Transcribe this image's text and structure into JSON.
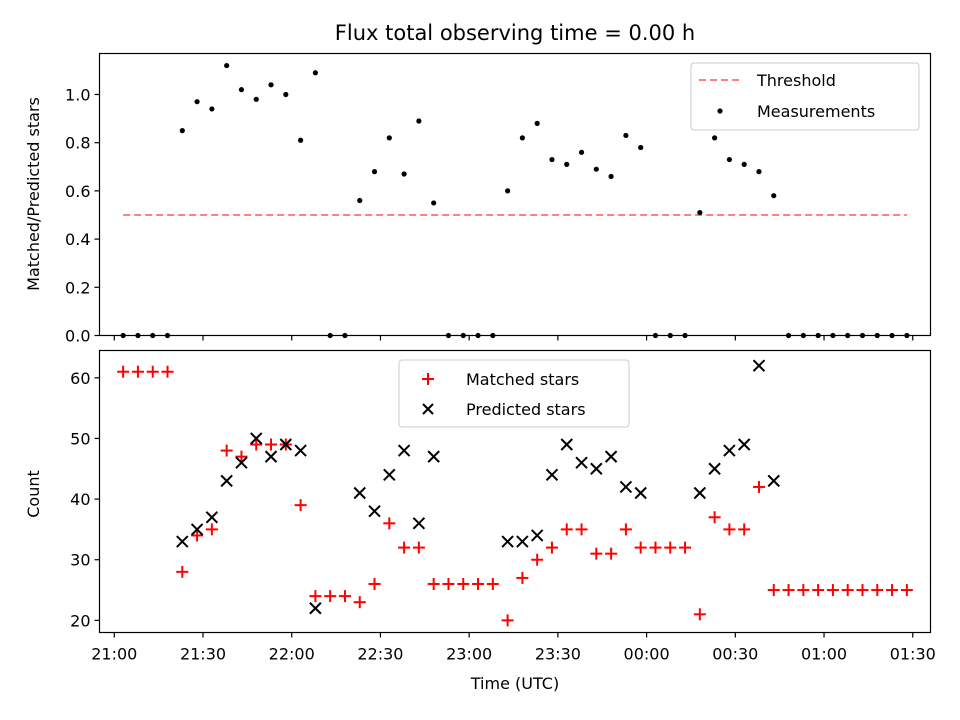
{
  "chart_data": [
    {
      "type": "scatter",
      "title": "Flux total observing time = 0.00 h",
      "xlabel": "",
      "ylabel": "Matched/Predicted stars",
      "xlim": [
        "20:55",
        "01:36"
      ],
      "ylim": [
        0,
        1.17
      ],
      "y_ticks": [
        0.0,
        0.2,
        0.4,
        0.6,
        0.8,
        1.0
      ],
      "y_tick_labels": [
        "0.0",
        "0.2",
        "0.4",
        "0.6",
        "0.8",
        "1.0"
      ],
      "legend_position": "upper right",
      "legend": [
        "Threshold",
        "Measurements"
      ],
      "threshold": {
        "name": "Threshold",
        "value": 0.5,
        "x_start": "21:03",
        "x_end": "01:28",
        "color": "#ff8080",
        "style": "dashed"
      },
      "series": [
        {
          "name": "Measurements",
          "color": "#000000",
          "marker": "dot",
          "x": [
            "21:03",
            "21:08",
            "21:13",
            "21:18",
            "21:23",
            "21:28",
            "21:33",
            "21:38",
            "21:43",
            "21:48",
            "21:53",
            "21:58",
            "22:03",
            "22:08",
            "22:13",
            "22:18",
            "22:23",
            "22:28",
            "22:33",
            "22:38",
            "22:43",
            "22:48",
            "22:53",
            "22:58",
            "23:03",
            "23:08",
            "23:13",
            "23:18",
            "23:23",
            "23:28",
            "23:33",
            "23:38",
            "23:43",
            "23:48",
            "23:53",
            "23:58",
            "00:03",
            "00:08",
            "00:13",
            "00:18",
            "00:23",
            "00:28",
            "00:33",
            "00:38",
            "00:43",
            "00:48",
            "00:53",
            "00:58",
            "01:03",
            "01:08",
            "01:13",
            "01:18",
            "01:23",
            "01:28"
          ],
          "y": [
            0,
            0,
            0,
            0,
            0.85,
            0.97,
            0.94,
            1.12,
            1.02,
            0.98,
            1.04,
            1.0,
            0.81,
            1.09,
            0,
            0,
            0.56,
            0.68,
            0.82,
            0.67,
            0.89,
            0.55,
            0,
            0,
            0,
            0,
            0.6,
            0.82,
            0.88,
            0.73,
            0.71,
            0.76,
            0.69,
            0.66,
            0.83,
            0.78,
            0,
            0,
            0,
            0.51,
            0.82,
            0.73,
            0.71,
            0.68,
            0.58,
            0,
            0,
            0,
            0,
            0,
            0,
            0,
            0,
            0
          ]
        }
      ]
    },
    {
      "type": "scatter",
      "title": "",
      "xlabel": "Time (UTC)",
      "ylabel": "Count",
      "xlim": [
        "20:55",
        "01:36"
      ],
      "ylim": [
        18,
        64.5
      ],
      "x_tick_labels": [
        "21:00",
        "21:30",
        "22:00",
        "22:30",
        "23:00",
        "23:30",
        "00:00",
        "00:30",
        "01:00",
        "01:30"
      ],
      "y_ticks": [
        20,
        30,
        40,
        50,
        60
      ],
      "y_tick_labels": [
        "20",
        "30",
        "40",
        "50",
        "60"
      ],
      "legend_position": "upper center",
      "legend": [
        "Matched stars",
        "Predicted stars"
      ],
      "series": [
        {
          "name": "Matched stars",
          "color": "#ff0000",
          "marker": "plus",
          "x": [
            "21:03",
            "21:08",
            "21:13",
            "21:18",
            "21:23",
            "21:28",
            "21:33",
            "21:38",
            "21:43",
            "21:48",
            "21:53",
            "21:58",
            "22:03",
            "22:08",
            "22:13",
            "22:18",
            "22:23",
            "22:28",
            "22:33",
            "22:38",
            "22:43",
            "22:48",
            "22:53",
            "22:58",
            "23:03",
            "23:08",
            "23:13",
            "23:18",
            "23:23",
            "23:28",
            "23:33",
            "23:38",
            "23:43",
            "23:48",
            "23:53",
            "23:58",
            "00:03",
            "00:08",
            "00:13",
            "00:18",
            "00:23",
            "00:28",
            "00:33",
            "00:38",
            "00:43",
            "00:48",
            "00:53",
            "00:58",
            "01:03",
            "01:08",
            "01:13",
            "01:18",
            "01:23",
            "01:28"
          ],
          "y": [
            61,
            61,
            61,
            61,
            28,
            34,
            35,
            48,
            47,
            49,
            49,
            49,
            39,
            24,
            24,
            24,
            23,
            26,
            36,
            32,
            32,
            26,
            26,
            26,
            26,
            26,
            20,
            27,
            30,
            32,
            35,
            35,
            31,
            31,
            35,
            32,
            32,
            32,
            32,
            21,
            37,
            35,
            35,
            42,
            25,
            25,
            25,
            25,
            25,
            25,
            25,
            25,
            25,
            25
          ]
        },
        {
          "name": "Predicted stars",
          "color": "#000000",
          "marker": "x",
          "x": [
            "21:23",
            "21:28",
            "21:33",
            "21:38",
            "21:43",
            "21:48",
            "21:53",
            "21:58",
            "22:03",
            "22:08",
            "22:23",
            "22:28",
            "22:33",
            "22:38",
            "22:43",
            "22:48",
            "23:13",
            "23:18",
            "23:23",
            "23:28",
            "23:33",
            "23:38",
            "23:43",
            "23:48",
            "23:53",
            "23:58",
            "00:18",
            "00:23",
            "00:28",
            "00:33",
            "00:38",
            "00:43"
          ],
          "y": [
            33,
            35,
            37,
            43,
            46,
            50,
            47,
            49,
            48,
            22,
            41,
            38,
            44,
            48,
            36,
            47,
            33,
            33,
            34,
            44,
            49,
            46,
            45,
            47,
            42,
            41,
            41,
            45,
            48,
            49,
            62,
            43
          ]
        }
      ]
    }
  ]
}
